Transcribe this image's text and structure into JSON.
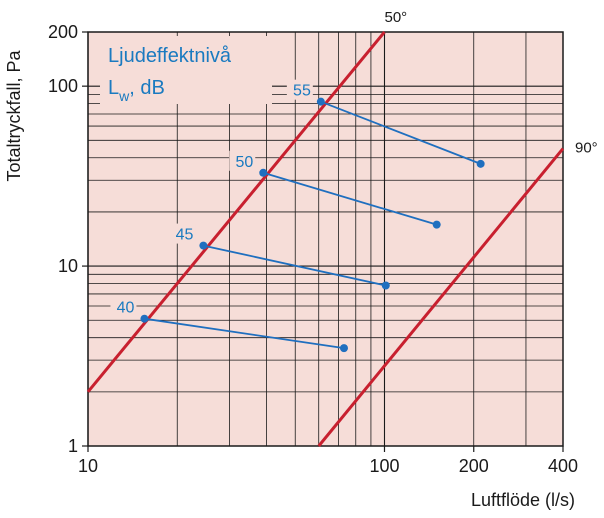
{
  "chart_data": {
    "type": "line",
    "xlabel": "Luftflöde (l/s)",
    "ylabel": "Totaltryckfall, Pa",
    "x_scale": "log",
    "y_scale": "log",
    "xlim": [
      10,
      400
    ],
    "ylim": [
      1,
      200
    ],
    "x_ticks": [
      {
        "v": 10,
        "label": "10"
      },
      {
        "v": 100,
        "label": "100"
      },
      {
        "v": 200,
        "label": "200"
      },
      {
        "v": 400,
        "label": "400"
      }
    ],
    "y_ticks": [
      {
        "v": 1,
        "label": "1"
      },
      {
        "v": 10,
        "label": "10"
      },
      {
        "v": 100,
        "label": "100"
      },
      {
        "v": 200,
        "label": "200"
      }
    ],
    "grid": true,
    "legend": {
      "title_line1": "Ljudeffektnivå",
      "symbol": "L",
      "subscript": "w",
      "unit": ", dB"
    },
    "series": [
      {
        "name": "50°",
        "points": [
          [
            10,
            2.0
          ],
          [
            100,
            200
          ]
        ]
      },
      {
        "name": "90°",
        "points": [
          [
            60,
            1.0
          ],
          [
            400,
            45
          ]
        ]
      }
    ],
    "sound_levels": [
      {
        "label": "40",
        "from": [
          15.5,
          5.1
        ],
        "to": [
          73,
          3.5
        ]
      },
      {
        "label": "45",
        "from": [
          24.5,
          13
        ],
        "to": [
          101,
          7.8
        ]
      },
      {
        "label": "50",
        "from": [
          39,
          33
        ],
        "to": [
          150,
          17
        ]
      },
      {
        "label": "55",
        "from": [
          61,
          82
        ],
        "to": [
          211,
          37
        ]
      }
    ],
    "colors": {
      "background": "#f6ddd8",
      "grid": "#1a1a1a",
      "pressure_line": "#c8202f",
      "sound_line": "#1f6fbf",
      "text_blue": "#1a7ac0"
    }
  }
}
